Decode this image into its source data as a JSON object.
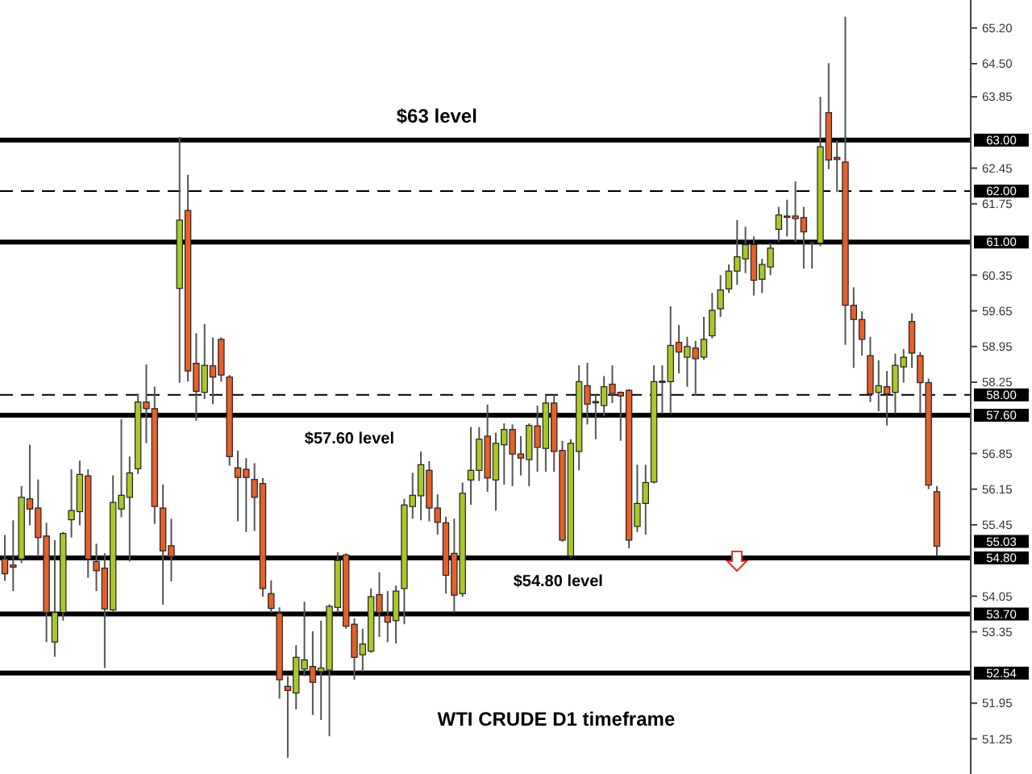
{
  "chart_data": {
    "type": "candlestick",
    "title": "WTI CRUDE D1 timeframe",
    "categories": [
      null,
      null,
      null,
      null,
      null,
      null,
      null,
      null,
      null,
      null,
      null,
      null,
      null,
      null,
      null,
      null,
      null,
      null,
      null,
      null,
      null,
      null,
      null,
      null,
      null,
      null,
      null,
      null,
      null,
      null,
      null,
      null,
      null,
      null,
      null,
      null,
      null,
      null,
      null,
      null,
      null,
      null,
      null,
      null,
      null,
      null,
      null,
      null,
      null,
      null,
      null,
      null,
      null,
      null,
      null,
      null,
      null,
      null,
      null,
      null,
      null,
      null,
      null,
      null,
      null,
      null,
      null,
      null,
      null,
      null,
      null,
      null,
      null,
      null,
      null,
      null,
      null,
      null,
      null,
      null,
      null,
      null,
      null,
      null,
      null,
      null,
      null,
      null,
      null,
      null,
      null,
      null,
      null,
      null,
      null,
      null,
      null,
      null,
      null,
      null,
      null,
      null,
      null,
      null,
      null,
      null,
      null,
      null,
      null,
      null,
      null,
      null,
      null
    ],
    "ohlc": [
      [
        54.78,
        55.25,
        54.35,
        54.49
      ],
      [
        54.66,
        55.54,
        54.15,
        54.62
      ],
      [
        54.78,
        56.21,
        54.7,
        55.99
      ],
      [
        55.96,
        57.02,
        55.44,
        55.76
      ],
      [
        55.78,
        56.34,
        54.83,
        55.2
      ],
      [
        55.23,
        55.49,
        53.15,
        53.73
      ],
      [
        53.15,
        55.15,
        52.86,
        53.73
      ],
      [
        53.73,
        55.31,
        53.57,
        55.28
      ],
      [
        55.55,
        56.54,
        55.2,
        55.73
      ],
      [
        55.71,
        56.71,
        55.44,
        56.44
      ],
      [
        56.41,
        56.54,
        54.41,
        54.78
      ],
      [
        54.73,
        55.08,
        54.15,
        54.55
      ],
      [
        54.6,
        54.89,
        52.64,
        53.8
      ],
      [
        53.78,
        56.42,
        53.76,
        55.89
      ],
      [
        55.76,
        57.52,
        55.6,
        56.03
      ],
      [
        55.99,
        56.79,
        54.73,
        56.47
      ],
      [
        56.55,
        58.02,
        56.45,
        57.86
      ],
      [
        57.86,
        58.6,
        57.05,
        57.73
      ],
      [
        57.73,
        58.16,
        55.47,
        55.81
      ],
      [
        55.78,
        56.24,
        53.88,
        54.94
      ],
      [
        55.04,
        55.57,
        54.34,
        54.83
      ],
      [
        60.09,
        63.06,
        58.24,
        61.43
      ],
      [
        61.62,
        62.32,
        58.26,
        58.47
      ],
      [
        58.62,
        59.21,
        57.49,
        58.07
      ],
      [
        58.05,
        59.39,
        57.92,
        58.58
      ],
      [
        58.57,
        59.13,
        57.82,
        58.35
      ],
      [
        59.09,
        59.13,
        58.26,
        58.39
      ],
      [
        58.35,
        58.39,
        56.61,
        56.79
      ],
      [
        56.57,
        56.91,
        55.52,
        56.38
      ],
      [
        56.54,
        56.76,
        55.31,
        56.38
      ],
      [
        56.34,
        56.66,
        55.33,
        55.99
      ],
      [
        56.26,
        56.37,
        54.04,
        54.2
      ],
      [
        54.1,
        54.36,
        53.73,
        53.81
      ],
      [
        53.71,
        53.83,
        52.04,
        52.41
      ],
      [
        52.28,
        52.48,
        50.88,
        52.2
      ],
      [
        52.15,
        53.09,
        51.83,
        52.85
      ],
      [
        52.62,
        53.94,
        52.48,
        52.8
      ],
      [
        52.67,
        53.36,
        51.72,
        52.36
      ],
      [
        52.57,
        53.57,
        51.62,
        52.64
      ],
      [
        52.6,
        53.89,
        51.3,
        53.85
      ],
      [
        53.83,
        54.91,
        53.73,
        54.75
      ],
      [
        54.86,
        54.89,
        53.41,
        53.46
      ],
      [
        53.5,
        53.62,
        52.41,
        52.85
      ],
      [
        52.9,
        53.41,
        52.57,
        53.11
      ],
      [
        52.97,
        54.2,
        52.94,
        54.04
      ],
      [
        54.08,
        54.52,
        53.25,
        53.73
      ],
      [
        53.67,
        54.15,
        53.15,
        53.54
      ],
      [
        53.57,
        54.26,
        53.12,
        54.15
      ],
      [
        54.2,
        55.96,
        53.5,
        55.84
      ],
      [
        55.81,
        56.47,
        55.57,
        56.03
      ],
      [
        56.02,
        56.89,
        55.54,
        56.63
      ],
      [
        56.52,
        56.7,
        55.52,
        55.78
      ],
      [
        55.78,
        56.05,
        55.26,
        55.5
      ],
      [
        55.49,
        55.61,
        54.1,
        54.46
      ],
      [
        54.89,
        55.57,
        53.73,
        54.07
      ],
      [
        54.1,
        56.28,
        54.04,
        56.07
      ],
      [
        56.33,
        57.37,
        55.84,
        56.52
      ],
      [
        56.52,
        57.37,
        56.31,
        57.13
      ],
      [
        57.19,
        57.81,
        56.1,
        56.37
      ],
      [
        56.33,
        57.26,
        55.73,
        57.05
      ],
      [
        57.02,
        57.44,
        56.24,
        57.32
      ],
      [
        57.32,
        57.42,
        56.21,
        56.84
      ],
      [
        56.84,
        57.19,
        56.42,
        56.76
      ],
      [
        56.73,
        57.44,
        56.21,
        57.4
      ],
      [
        57.39,
        57.79,
        56.49,
        56.97
      ],
      [
        56.95,
        58,
        56.49,
        57.84
      ],
      [
        57.84,
        58,
        56.49,
        56.89
      ],
      [
        56.91,
        57.1,
        55.12,
        55.15
      ],
      [
        54.84,
        57.13,
        54.8,
        57.05
      ],
      [
        56.89,
        58.58,
        56.52,
        58.26
      ],
      [
        58.18,
        58.63,
        57.42,
        57.82
      ],
      [
        57.87,
        58,
        57.13,
        57.85
      ],
      [
        57.79,
        58.37,
        57.58,
        58.16
      ],
      [
        58.21,
        58.58,
        57.84,
        58.03
      ],
      [
        58.05,
        58.07,
        57.1,
        57.98
      ],
      [
        58.09,
        58.11,
        54.99,
        55.15
      ],
      [
        55.42,
        56.63,
        55.31,
        55.87
      ],
      [
        55.87,
        56.63,
        55.26,
        56.28
      ],
      [
        56.29,
        58.58,
        56.26,
        58.26
      ],
      [
        58.27,
        58.58,
        57.63,
        58.25
      ],
      [
        58.26,
        59.74,
        57.63,
        58.97
      ],
      [
        59.03,
        59.37,
        58.42,
        58.84
      ],
      [
        58.74,
        59.14,
        58.16,
        58.95
      ],
      [
        58.92,
        59.06,
        57.98,
        58.71
      ],
      [
        58.74,
        59.53,
        58.69,
        59.09
      ],
      [
        59.16,
        60,
        59.11,
        59.66
      ],
      [
        59.69,
        60.35,
        59.53,
        60.06
      ],
      [
        60.08,
        60.56,
        60,
        60.43
      ],
      [
        60.43,
        61.43,
        60.16,
        60.71
      ],
      [
        60.67,
        61.3,
        60.39,
        60.95
      ],
      [
        60.95,
        61.11,
        59.95,
        60.25
      ],
      [
        60.27,
        60.67,
        60,
        60.56
      ],
      [
        60.51,
        60.98,
        60.35,
        60.88
      ],
      [
        61.25,
        61.69,
        61,
        61.53
      ],
      [
        61.51,
        61.83,
        61.11,
        61.49
      ],
      [
        61.51,
        62.19,
        61,
        61.46
      ],
      [
        61.48,
        61.69,
        60.48,
        61.2
      ],
      [
        61,
        61,
        60.48,
        60.98
      ],
      [
        60.98,
        63.85,
        60.92,
        62.87
      ],
      [
        63.54,
        64.51,
        62.43,
        62.61
      ],
      [
        62.66,
        62.99,
        61.98,
        62.62
      ],
      [
        62.57,
        65.42,
        58.98,
        59.76
      ],
      [
        59.76,
        60.11,
        58.53,
        59.48
      ],
      [
        59.48,
        59.64,
        58.77,
        59.09
      ],
      [
        58.77,
        59.14,
        57.86,
        58.02
      ],
      [
        58.05,
        58.68,
        57.68,
        58.18
      ],
      [
        58.16,
        58.47,
        57.4,
        58.02
      ],
      [
        58.05,
        58.81,
        57.63,
        58.58
      ],
      [
        58.55,
        58.9,
        58.24,
        58.74
      ],
      [
        59.44,
        59.6,
        58.53,
        58.82
      ],
      [
        58.77,
        58.84,
        57.63,
        58.24
      ],
      [
        58.24,
        58.32,
        56.15,
        56.23
      ],
      [
        56.1,
        56.21,
        54.84,
        55.03
      ]
    ],
    "ylim": [
      50.56,
      65.75
    ],
    "yticks": [
      {
        "value": 65.2,
        "label": "65.20"
      },
      {
        "value": 64.5,
        "label": "64.50"
      },
      {
        "value": 63.85,
        "label": "63.85"
      },
      {
        "value": 62.45,
        "label": "62.45"
      },
      {
        "value": 61.75,
        "label": "61.75"
      },
      {
        "value": 60.35,
        "label": "60.35"
      },
      {
        "value": 59.65,
        "label": "59.65"
      },
      {
        "value": 58.95,
        "label": "58.95"
      },
      {
        "value": 58.25,
        "label": "58.25"
      },
      {
        "value": 56.85,
        "label": "56.85"
      },
      {
        "value": 56.15,
        "label": "56.15"
      },
      {
        "value": 55.45,
        "label": "55.45"
      },
      {
        "value": 54.05,
        "label": "54.05"
      },
      {
        "value": 53.35,
        "label": "53.35"
      },
      {
        "value": 51.95,
        "label": "51.95"
      },
      {
        "value": 51.25,
        "label": "51.25"
      }
    ],
    "ref_lines": [
      {
        "axis": "y",
        "value": 63,
        "label": "63.00",
        "color": "#000000",
        "line_style": "solid"
      },
      {
        "axis": "y",
        "value": 62,
        "label": "62.00",
        "color": "#000000",
        "line_style": "dashed"
      },
      {
        "axis": "y",
        "value": 61,
        "label": "61.00",
        "color": "#000000",
        "line_style": "solid"
      },
      {
        "axis": "y",
        "value": 58,
        "label": "58.00",
        "color": "#000000",
        "line_style": "dashed"
      },
      {
        "axis": "y",
        "value": 57.6,
        "label": "57.60",
        "color": "#000000",
        "line_style": "solid"
      },
      {
        "axis": "y",
        "value": 54.8,
        "label": "54.80",
        "color": "#000000",
        "line_style": "solid"
      },
      {
        "axis": "y",
        "value": 53.7,
        "label": "53.70",
        "color": "#000000",
        "line_style": "solid"
      },
      {
        "axis": "y",
        "value": 52.54,
        "label": "52.54",
        "color": "#000000",
        "line_style": "solid"
      }
    ],
    "annotations": [
      {
        "text": "$63 level",
        "y": 63
      },
      {
        "text": "$57.60 level",
        "y": 57.6
      },
      {
        "text": "$54.80 level",
        "y": 54.8
      },
      "55.03"
    ],
    "grid": false
  }
}
